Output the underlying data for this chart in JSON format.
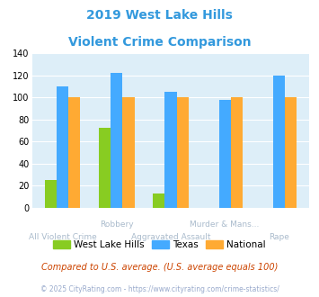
{
  "title_line1": "2019 West Lake Hills",
  "title_line2": "Violent Crime Comparison",
  "title_color": "#3399dd",
  "groups": [
    "All Violent Crime",
    "Robbery",
    "Aggravated Assault",
    "Murder & Mans...",
    "Rape"
  ],
  "west_lake_hills": [
    25,
    73,
    13,
    0,
    0
  ],
  "texas": [
    110,
    122,
    105,
    98,
    120
  ],
  "national": [
    100,
    100,
    100,
    100,
    100
  ],
  "wlh_color": "#88cc22",
  "texas_color": "#44aaff",
  "national_color": "#ffaa33",
  "ylim": [
    0,
    140
  ],
  "yticks": [
    0,
    20,
    40,
    60,
    80,
    100,
    120,
    140
  ],
  "plot_bg": "#ddeef8",
  "legend_labels": [
    "West Lake Hills",
    "Texas",
    "National"
  ],
  "footnote1": "Compared to U.S. average. (U.S. average equals 100)",
  "footnote2": "© 2025 CityRating.com - https://www.cityrating.com/crime-statistics/",
  "footnote1_color": "#cc4400",
  "footnote2_color": "#99aacc",
  "label_color": "#aabbcc"
}
